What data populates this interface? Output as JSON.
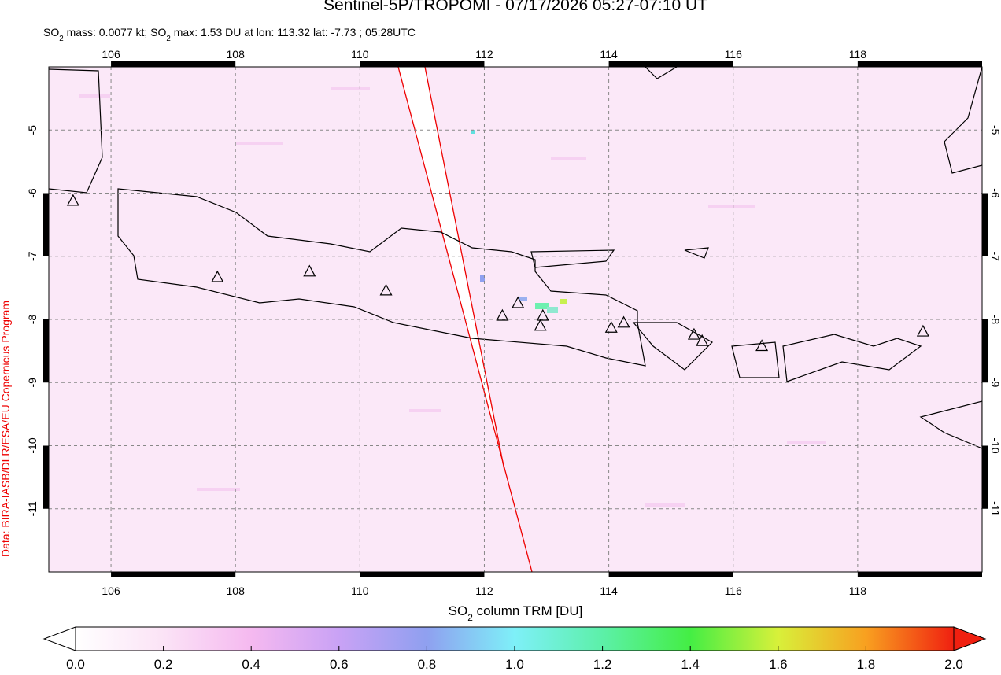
{
  "title": "Sentinel-5P/TROPOMI - 07/17/2026 05:27-07:10 UT",
  "subtitle_parts": [
    "SO",
    "2",
    " mass: 0.0077 kt; SO",
    "2",
    " max: 1.53 DU at lon: 113.32 lat: -7.73 ; 05:28UTC"
  ],
  "credit": "Data: BIRA-IASB/DLR/ESA/EU Copernicus Program",
  "chart_data": {
    "type": "map",
    "xlim": [
      105,
      120
    ],
    "ylim": [
      -12,
      -4
    ],
    "xticks": [
      106,
      108,
      110,
      112,
      114,
      116,
      118
    ],
    "yticks": [
      -5,
      -6,
      -7,
      -8,
      -9,
      -10,
      -11
    ],
    "grid": true,
    "volcanoes": {
      "lon": [
        105.39,
        107.71,
        109.19,
        110.42,
        112.29,
        112.54,
        112.94,
        112.9,
        114.04,
        114.24,
        115.37,
        115.5,
        116.46,
        119.05
      ],
      "lat": [
        -6.13,
        -7.34,
        -7.25,
        -7.55,
        -7.95,
        -7.75,
        -7.95,
        -8.11,
        -8.14,
        -8.06,
        -8.25,
        -8.35,
        -8.43,
        -8.2
      ]
    },
    "colorbar": {
      "label_parts": [
        "SO",
        "2",
        " column TRM [DU]"
      ],
      "lim": [
        0,
        2
      ],
      "ticks": [
        {
          "value": 0,
          "label": "0.0"
        },
        0.2,
        0.4,
        0.6,
        0.8,
        {
          "value": 1,
          "label": "1.0"
        },
        1.2,
        1.4,
        1.6,
        1.8,
        {
          "value": 2,
          "label": "2.0"
        }
      ]
    }
  }
}
